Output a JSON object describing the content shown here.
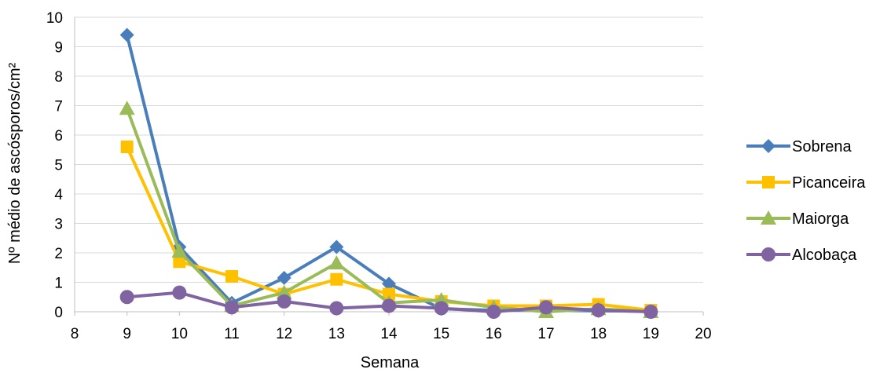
{
  "chart_data": {
    "type": "line",
    "title": "",
    "xlabel": "Semana",
    "ylabel": "Nº médio de ascósporos/cm²",
    "xlim": [
      8,
      20
    ],
    "ylim": [
      0,
      10
    ],
    "xticks": [
      8,
      9,
      10,
      11,
      12,
      13,
      14,
      15,
      16,
      17,
      18,
      19,
      20
    ],
    "yticks": [
      0,
      1,
      2,
      3,
      4,
      5,
      6,
      7,
      8,
      9,
      10
    ],
    "grid": "horizontal",
    "legend_position": "right",
    "x": [
      9,
      10,
      11,
      12,
      13,
      14,
      15,
      16,
      17,
      18,
      19
    ],
    "series": [
      {
        "name": "Sobrena",
        "color": "#4a7ebb",
        "marker": "diamond",
        "values": [
          9.4,
          2.2,
          0.3,
          1.15,
          2.2,
          0.95,
          0.1,
          0.05,
          0.05,
          0.03,
          0.02
        ]
      },
      {
        "name": "Picanceira",
        "color": "#ffc000",
        "marker": "square",
        "values": [
          5.6,
          1.7,
          1.2,
          0.6,
          1.1,
          0.6,
          0.35,
          0.2,
          0.2,
          0.25,
          0.05
        ]
      },
      {
        "name": "Maiorga",
        "color": "#9bbb59",
        "marker": "triangle",
        "values": [
          6.9,
          2.05,
          0.2,
          0.65,
          1.65,
          0.3,
          0.4,
          0.15,
          0.0,
          0.1,
          0.0
        ]
      },
      {
        "name": "Alcobaça",
        "color": "#8064a2",
        "marker": "circle",
        "values": [
          0.5,
          0.65,
          0.15,
          0.35,
          0.12,
          0.2,
          0.12,
          0.0,
          0.15,
          0.05,
          0.0
        ]
      }
    ]
  }
}
